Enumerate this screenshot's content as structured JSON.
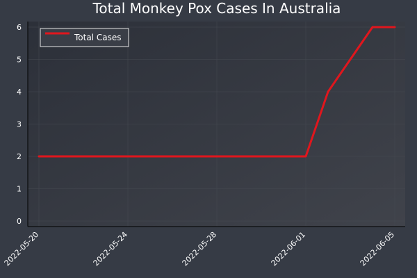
{
  "chart_data": {
    "type": "line",
    "title": "Total Monkey Pox Cases In Australia",
    "xlabel": "",
    "ylabel": "",
    "x_ticks": [
      "2022-05-20",
      "2022-05-24",
      "2022-05-28",
      "2022-06-01",
      "2022-06-05"
    ],
    "y_ticks": [
      "0",
      "1",
      "2",
      "3",
      "4",
      "5",
      "6"
    ],
    "ylim": [
      0,
      6
    ],
    "xlim": [
      "2022-05-20",
      "2022-06-05"
    ],
    "grid": true,
    "legend_position": "top-left",
    "series": [
      {
        "name": "Total Cases",
        "color": "#e0161d",
        "x": [
          "2022-05-20",
          "2022-06-01",
          "2022-06-02",
          "2022-06-04",
          "2022-06-05"
        ],
        "y": [
          2,
          2,
          4,
          6,
          6
        ]
      }
    ]
  },
  "colors": {
    "background": "#363b45",
    "plot_background_top": "#2f333b",
    "plot_background_bottom": "#3d4049",
    "axis": "#000000"
  }
}
